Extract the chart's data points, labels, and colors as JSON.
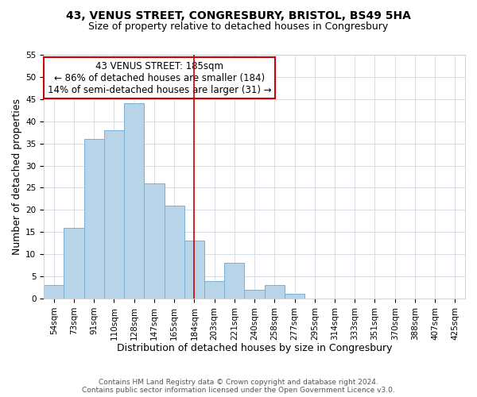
{
  "title": "43, VENUS STREET, CONGRESBURY, BRISTOL, BS49 5HA",
  "subtitle": "Size of property relative to detached houses in Congresbury",
  "xlabel": "Distribution of detached houses by size in Congresbury",
  "ylabel": "Number of detached properties",
  "bar_labels": [
    "54sqm",
    "73sqm",
    "91sqm",
    "110sqm",
    "128sqm",
    "147sqm",
    "165sqm",
    "184sqm",
    "203sqm",
    "221sqm",
    "240sqm",
    "258sqm",
    "277sqm",
    "295sqm",
    "314sqm",
    "333sqm",
    "351sqm",
    "370sqm",
    "388sqm",
    "407sqm",
    "425sqm"
  ],
  "bar_values": [
    3,
    16,
    36,
    38,
    44,
    26,
    21,
    13,
    4,
    8,
    2,
    3,
    1,
    0,
    0,
    0,
    0,
    0,
    0,
    0,
    0
  ],
  "bar_color": "#b8d4e8",
  "bar_edge_color": "#7aafd4",
  "vline_index": 7,
  "vline_color": "#cc0000",
  "ylim": [
    0,
    55
  ],
  "yticks": [
    0,
    5,
    10,
    15,
    20,
    25,
    30,
    35,
    40,
    45,
    50,
    55
  ],
  "annotation_title": "43 VENUS STREET: 185sqm",
  "annotation_line1": "← 86% of detached houses are smaller (184)",
  "annotation_line2": "14% of semi-detached houses are larger (31) →",
  "footer_line1": "Contains HM Land Registry data © Crown copyright and database right 2024.",
  "footer_line2": "Contains public sector information licensed under the Open Government Licence v3.0.",
  "title_fontsize": 10,
  "subtitle_fontsize": 9,
  "axis_label_fontsize": 9,
  "tick_fontsize": 7.5,
  "annotation_fontsize": 8.5,
  "footer_fontsize": 6.5,
  "background_color": "#ffffff",
  "grid_color": "#d0d8e0"
}
